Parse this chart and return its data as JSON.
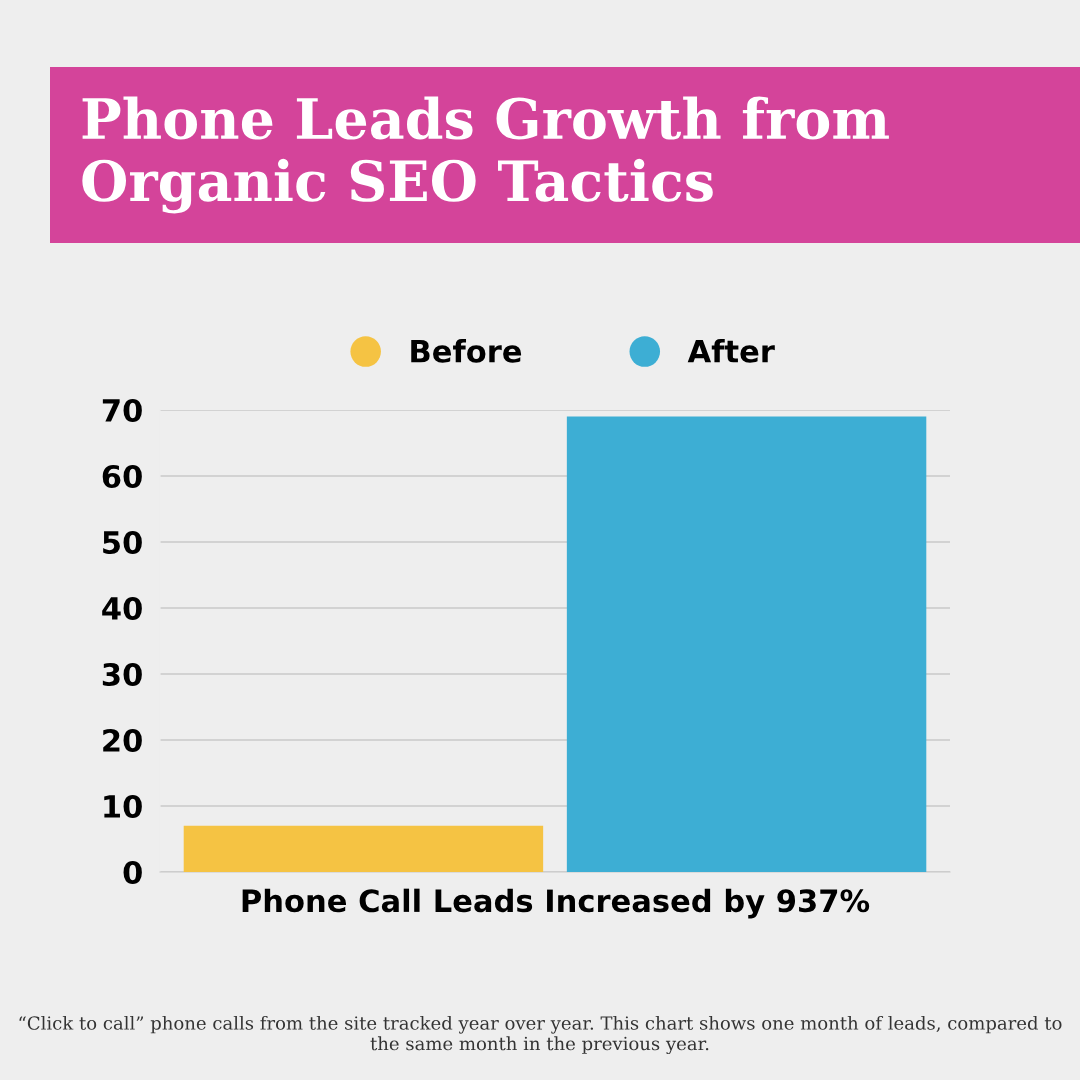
{
  "chart_data": {
    "type": "bar",
    "title": "Phone Leads Growth from Organic SEO Tactics",
    "categories": [
      "Phone Call Leads Increased by 937%"
    ],
    "series": [
      {
        "name": "Before",
        "color": "#f5c343",
        "values": [
          7
        ]
      },
      {
        "name": "After",
        "color": "#3daed4",
        "values": [
          69
        ]
      }
    ],
    "ylim": [
      0,
      70
    ],
    "yticks": [
      0,
      10,
      20,
      30,
      40,
      50,
      60,
      70
    ],
    "grid": "y",
    "legend": "top",
    "annotations": [
      "“Click to call” phone calls from the site tracked year over year. This chart shows one month of leads, compared to the same month in the previous year."
    ]
  }
}
